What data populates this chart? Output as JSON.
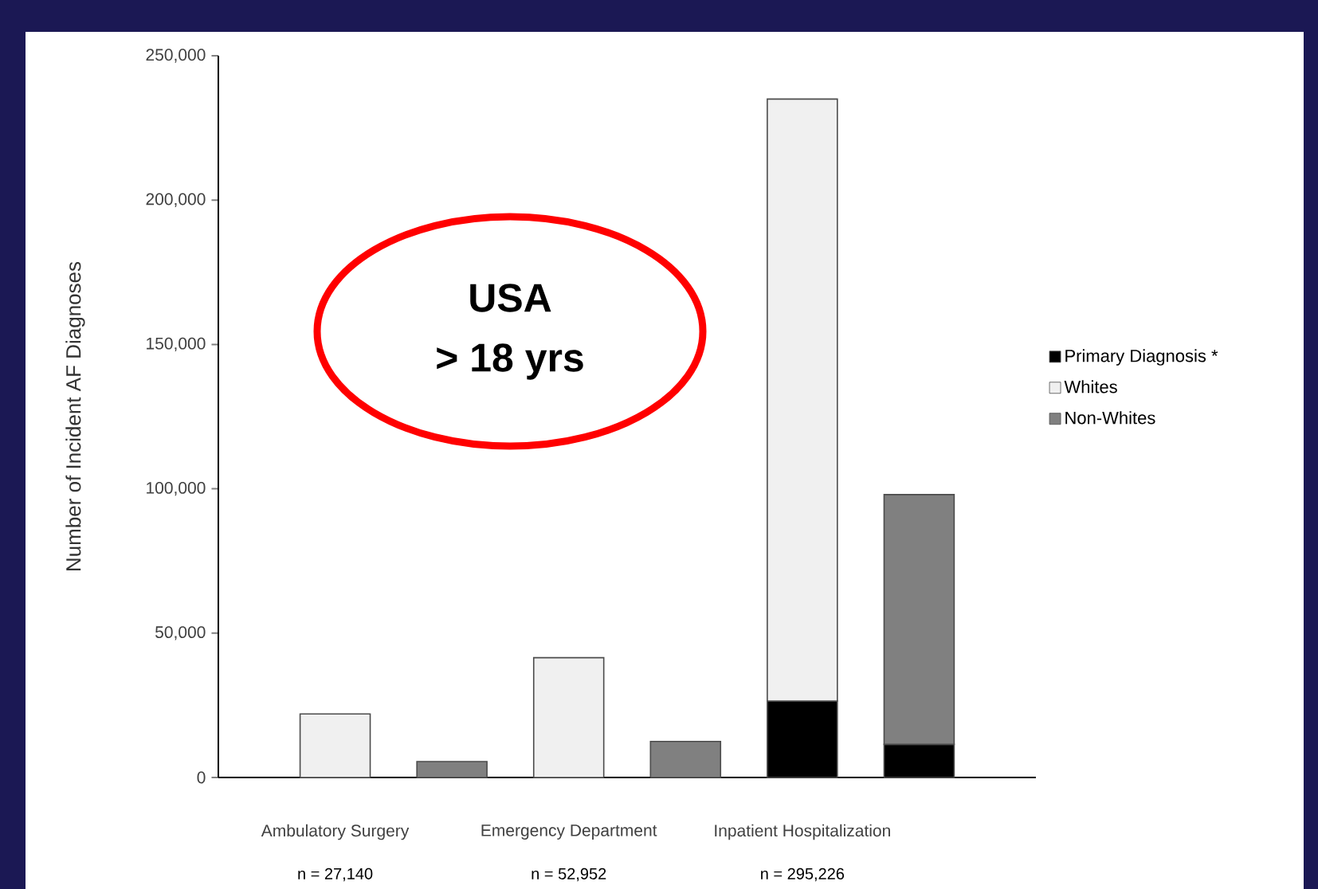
{
  "chart_data": {
    "type": "bar",
    "stacked": true,
    "ylabel": "Number of Incident AF Diagnoses",
    "categories": [
      "Ambulatory Surgery",
      null,
      "Emergency Department",
      null,
      "Inpatient Hospitalization",
      null
    ],
    "ylim": [
      0,
      250000
    ],
    "yticks": [
      0,
      {
        "value": 50000,
        "label": "50,000"
      },
      {
        "value": 100000,
        "label": "100,000"
      },
      {
        "value": 150000,
        "label": "150,000"
      },
      {
        "value": 200000,
        "label": "200,000"
      },
      {
        "value": 250000,
        "label": "250,000"
      }
    ],
    "series": [
      {
        "name": "Primary Diagnosis *",
        "color": "#000000",
        "values": [
          null,
          null,
          null,
          null,
          26500,
          11500
        ]
      },
      {
        "name": "Whites",
        "color": "#f0f0f0",
        "values": [
          22000,
          null,
          41500,
          null,
          208500,
          null
        ]
      },
      {
        "name": "Non-Whites",
        "color": "#808080",
        "values": [
          null,
          5500,
          null,
          12500,
          null,
          86500
        ]
      }
    ],
    "annotations": [
      "n = 27,140",
      "n = 52,952",
      "n = 295,226",
      "USA",
      "> 18 yrs"
    ],
    "legend": "right"
  }
}
